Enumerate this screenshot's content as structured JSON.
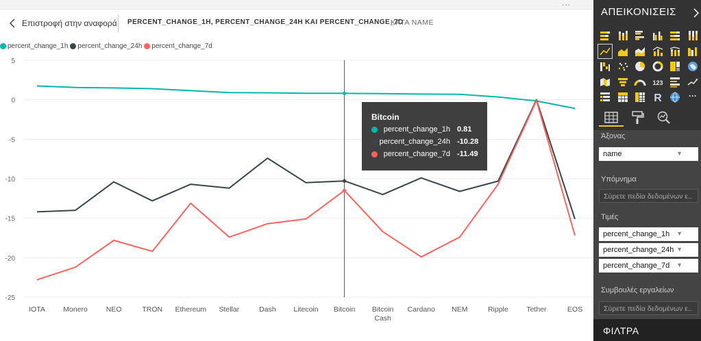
{
  "header": {
    "back_label": "Επιστροφή στην αναφορά",
    "visual_title": "PERCENT_CHANGE_1H, PERCENT_CHANGE_24H ΚΑΙ PERCENT_CHANGE_7D",
    "visual_by": "ΚΑΤΑ NAME"
  },
  "colors": {
    "percent_change_1h": "#01b8aa",
    "percent_change_24h": "#374649",
    "percent_change_7d": "#fd625e",
    "pane_bg": "#333333",
    "tooltip_bg": "#3f3f3f",
    "accent": "#f2c811"
  },
  "chart_data": {
    "type": "line",
    "categories": [
      "IOTA",
      "Monero",
      "NEO",
      "TRON",
      "Ethereum",
      "Stellar",
      "Dash",
      "Litecoin",
      "Bitcoin",
      "Bitcoin Cash",
      "Cardano",
      "NEM",
      "Ripple",
      "Tether",
      "EOS"
    ],
    "series": [
      {
        "name": "percent_change_1h",
        "values": [
          1.75,
          1.55,
          1.5,
          1.4,
          1.15,
          0.9,
          0.88,
          0.82,
          0.81,
          0.78,
          0.72,
          0.68,
          0.35,
          -0.15,
          -1.1
        ]
      },
      {
        "name": "percent_change_24h",
        "values": [
          -14.2,
          -14.0,
          -10.4,
          -12.8,
          -10.7,
          -11.2,
          -7.4,
          -10.5,
          -10.28,
          -12.0,
          -9.9,
          -11.6,
          -10.3,
          0.0,
          -15.1
        ]
      },
      {
        "name": "percent_change_7d",
        "values": [
          -22.8,
          -21.2,
          -17.8,
          -19.2,
          -13.1,
          -17.4,
          -15.7,
          -15.1,
          -11.49,
          -16.7,
          -19.9,
          -17.4,
          -10.7,
          -0.1,
          -17.2
        ]
      }
    ],
    "ylim": [
      -25,
      5
    ],
    "yticks": [
      5,
      0,
      -5,
      -10,
      -15,
      -20,
      -25
    ],
    "ytick_labels": [
      "5",
      "0",
      "-5",
      "-10",
      "-15",
      "-20",
      "-25"
    ],
    "grid": true,
    "legend_position": "top-left",
    "highlighted_category": "Bitcoin",
    "tooltip": {
      "title": "Bitcoin",
      "rows": [
        {
          "name": "percent_change_1h",
          "value": "0.81"
        },
        {
          "name": "percent_change_24h",
          "value": "-10.28"
        },
        {
          "name": "percent_change_7d",
          "value": "-11.49"
        }
      ]
    }
  },
  "pane": {
    "header": "ΑΠΕΙΚΟΝΙΣΕΙΣ",
    "visual_icons": [
      "stacked-bar-icon",
      "stacked-column-icon",
      "clustered-bar-icon",
      "clustered-column-icon",
      "100-percent-bar-icon",
      "100-percent-column-icon",
      "line-chart-icon",
      "area-chart-icon",
      "stacked-area-icon",
      "line-column-icon",
      "line-stacked-column-icon",
      "ribbon-chart-icon",
      "waterfall-icon",
      "scatter-icon",
      "pie-icon",
      "donut-icon",
      "treemap-icon",
      "map-icon",
      "filled-map-icon",
      "funnel-icon",
      "gauge-icon",
      "card-icon",
      "multi-row-card-icon",
      "kpi-icon",
      "slicer-icon",
      "table-icon",
      "matrix-icon",
      "r-visual-icon",
      "globe-icon",
      "more-icon"
    ],
    "sections": {
      "axis_label": "Άξονας",
      "axis_field": "name",
      "legend_label": "Υπόμνημα",
      "legend_placeholder": "Σύρετε πεδία δεδομένων ε...",
      "values_label": "Τιμές",
      "values_fields": [
        "percent_change_1h",
        "percent_change_24h",
        "percent_change_7d"
      ],
      "tooltips_label": "Συμβουλές εργαλείων",
      "tooltips_placeholder": "Σύρετε πεδία δεδομένων ε..."
    },
    "filters_label": "ΦΙΛΤΡΑ",
    "more_glyph": "···"
  },
  "top_menu_glyph": "..."
}
